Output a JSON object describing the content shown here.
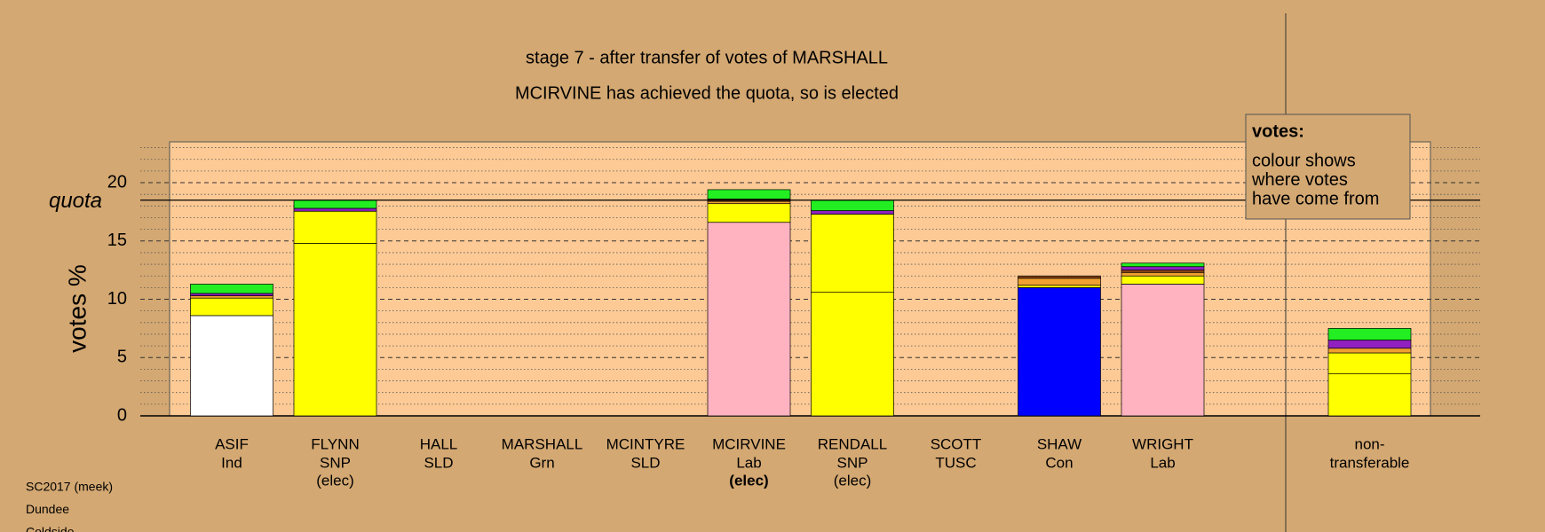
{
  "chart_data": {
    "type": "stacked_bar",
    "title": "stage 7 - after transfer of votes of MARSHALL",
    "subtitle": "MCIRVINE has achieved the quota, so is elected",
    "y_label": "votes %",
    "categories": [
      "ASIF",
      "FLYNN",
      "HALL",
      "MARSHALL",
      "MCINTYRE",
      "MCIRVINE",
      "RENDALL",
      "SCOTT",
      "SHAW",
      "WRIGHT",
      "non-"
    ],
    "parties": [
      "Ind",
      "SNP",
      "SLD",
      "Grn",
      "SLD",
      "Lab",
      "SNP",
      "TUSC",
      "Con",
      "Lab",
      "transferable"
    ],
    "status": [
      null,
      "(elec)",
      null,
      null,
      null,
      "(elec)",
      "(elec)",
      null,
      null,
      null,
      null
    ],
    "highlight": "MCIRVINE",
    "series": [
      {
        "color": "#ffffff",
        "values": [
          8.6,
          null,
          null,
          null,
          null,
          null,
          null,
          null,
          null,
          null,
          null
        ]
      },
      {
        "color": "#ffff00",
        "values": [
          null,
          14.8,
          null,
          null,
          null,
          null,
          10.6,
          null,
          null,
          null,
          3.6
        ]
      },
      {
        "color": "#ffb3c1",
        "values": [
          null,
          null,
          null,
          null,
          null,
          16.6,
          null,
          null,
          null,
          11.3,
          null
        ]
      },
      {
        "color": "#0000ff",
        "values": [
          null,
          null,
          null,
          null,
          null,
          null,
          null,
          null,
          11.0,
          null,
          null
        ]
      },
      {
        "color": "#ffff00",
        "values": [
          1.5,
          2.75,
          null,
          null,
          null,
          1.6,
          6.7,
          null,
          0.2,
          0.7,
          1.8
        ]
      },
      {
        "color": "#f0a030",
        "values": [
          0.2,
          null,
          null,
          null,
          null,
          0.2,
          null,
          null,
          0.6,
          0.3,
          0.4
        ]
      },
      {
        "color": "#8b4513",
        "values": [
          null,
          null,
          null,
          null,
          null,
          0.2,
          null,
          null,
          0.2,
          0.2,
          null
        ]
      },
      {
        "color": "#9020c0",
        "values": [
          0.2,
          0.25,
          null,
          null,
          null,
          null,
          0.3,
          null,
          null,
          0.3,
          0.7
        ]
      },
      {
        "color": "#22ee22",
        "values": [
          0.8,
          0.7,
          null,
          null,
          null,
          0.8,
          0.9,
          null,
          null,
          0.3,
          1.0
        ]
      }
    ],
    "ylim": [
      0,
      23.5
    ],
    "yticks": [
      0,
      5,
      10,
      15,
      20
    ],
    "minor_yticks": [
      1,
      2,
      3,
      4,
      6,
      7,
      8,
      9,
      11,
      12,
      13,
      14,
      16,
      17,
      18,
      19,
      21,
      22,
      23
    ],
    "quota": 18.5,
    "quota_label": "quota",
    "annotation": {
      "heading": "votes:",
      "lines": [
        "colour shows",
        "where votes",
        "have come from"
      ]
    },
    "footnotes": [
      "SC2017 (meek)",
      "Dundee",
      "Coldside"
    ]
  }
}
